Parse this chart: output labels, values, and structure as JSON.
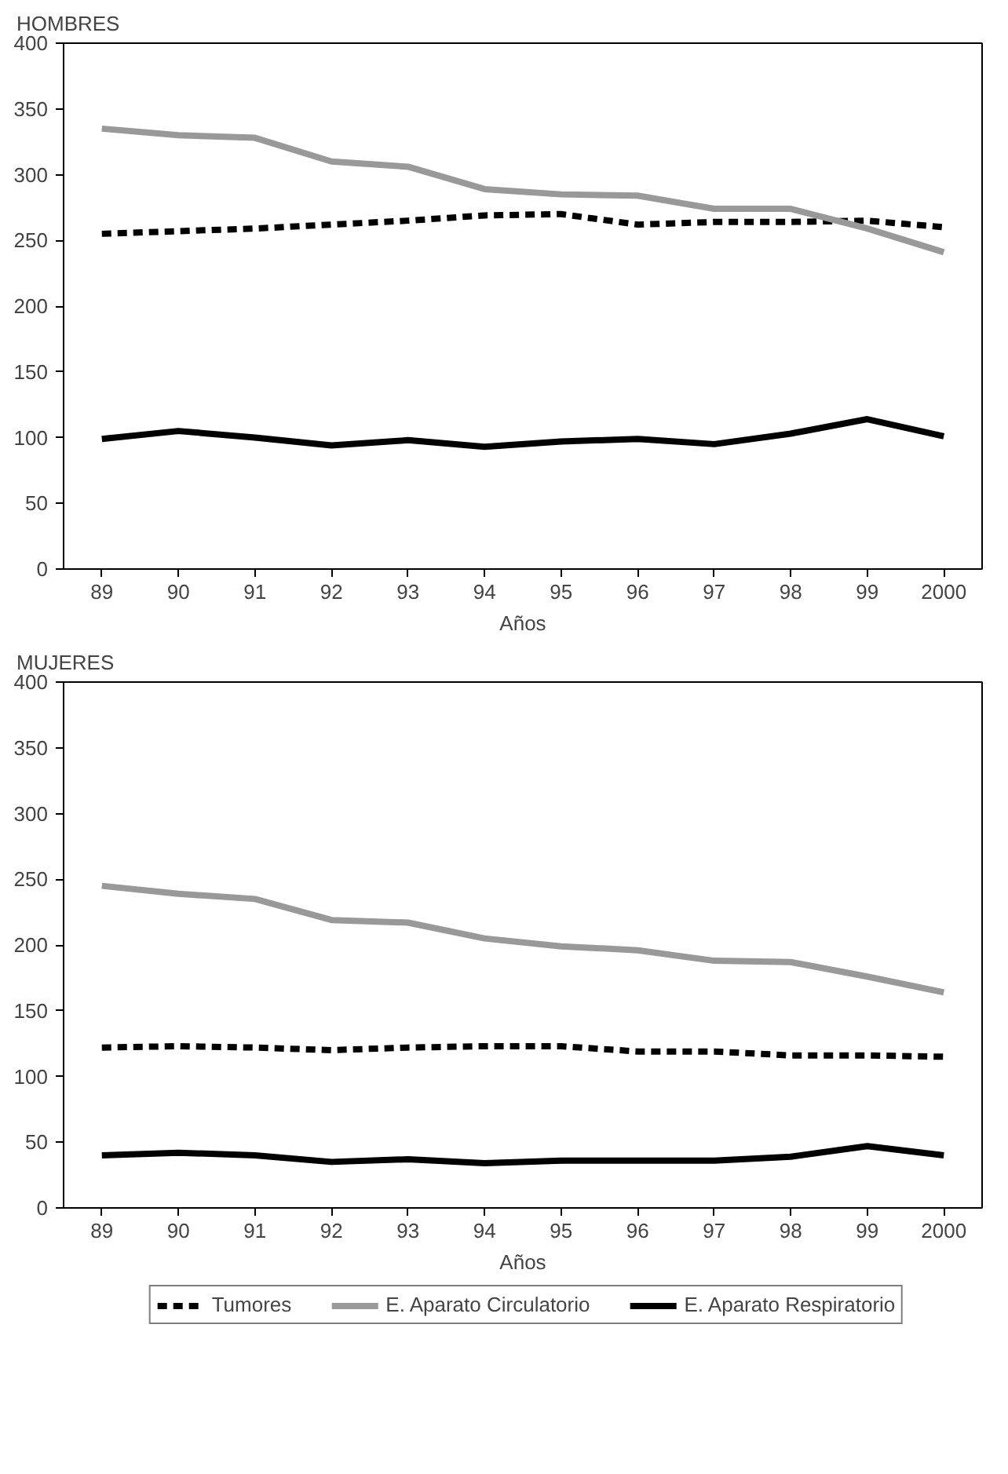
{
  "chart_data": [
    {
      "type": "line",
      "title": "HOMBRES",
      "xlabel": "Años",
      "categories": [
        "89",
        "90",
        "91",
        "92",
        "93",
        "94",
        "95",
        "96",
        "97",
        "98",
        "99",
        "2000"
      ],
      "ylim": [
        0,
        400
      ],
      "yticks": [
        0,
        50,
        100,
        150,
        200,
        250,
        300,
        350,
        400
      ],
      "grid": false,
      "legend": false,
      "series": [
        {
          "color": "#000000",
          "line_style": "dashed",
          "values": [
            255,
            257,
            259,
            262,
            265,
            269,
            270,
            262,
            264,
            264,
            265,
            260
          ]
        },
        {
          "color": "#999999",
          "line_style": "solid",
          "values": [
            335,
            330,
            328,
            310,
            306,
            289,
            285,
            284,
            274,
            274,
            259,
            241
          ]
        },
        {
          "color": "#000000",
          "line_style": "solid",
          "values": [
            99,
            105,
            100,
            94,
            98,
            93,
            97,
            99,
            95,
            103,
            114,
            101
          ]
        }
      ]
    },
    {
      "type": "line",
      "title": "MUJERES",
      "xlabel": "Años",
      "categories": [
        "89",
        "90",
        "91",
        "92",
        "93",
        "94",
        "95",
        "96",
        "97",
        "98",
        "99",
        "2000"
      ],
      "ylim": [
        0,
        400
      ],
      "yticks": [
        0,
        50,
        100,
        150,
        200,
        250,
        300,
        350,
        400
      ],
      "grid": false,
      "legend": "bottom",
      "series": [
        {
          "name": "Tumores",
          "color": "#000000",
          "line_style": "dashed",
          "values": [
            122,
            123,
            122,
            120,
            122,
            123,
            123,
            119,
            119,
            116,
            116,
            115
          ]
        },
        {
          "name": "E. Aparato Circulatorio",
          "color": "#999999",
          "line_style": "solid",
          "values": [
            245,
            239,
            235,
            219,
            217,
            205,
            199,
            196,
            188,
            187,
            176,
            164
          ]
        },
        {
          "name": "E. Aparato Respiratorio",
          "color": "#000000",
          "line_style": "solid",
          "values": [
            40,
            42,
            40,
            35,
            37,
            34,
            36,
            36,
            36,
            39,
            47,
            40
          ]
        }
      ]
    }
  ]
}
